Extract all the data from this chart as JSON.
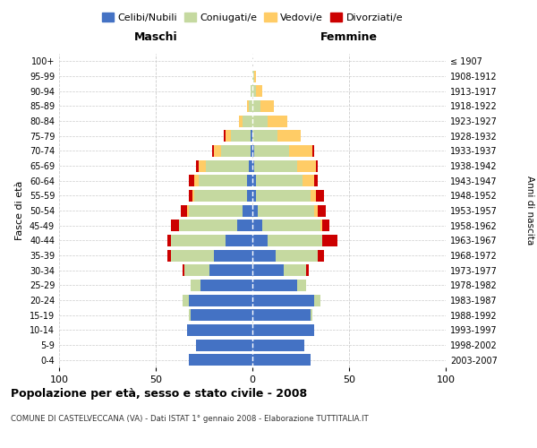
{
  "age_groups": [
    "0-4",
    "5-9",
    "10-14",
    "15-19",
    "20-24",
    "25-29",
    "30-34",
    "35-39",
    "40-44",
    "45-49",
    "50-54",
    "55-59",
    "60-64",
    "65-69",
    "70-74",
    "75-79",
    "80-84",
    "85-89",
    "90-94",
    "95-99",
    "100+"
  ],
  "birth_years": [
    "2003-2007",
    "1998-2002",
    "1993-1997",
    "1988-1992",
    "1983-1987",
    "1978-1982",
    "1973-1977",
    "1968-1972",
    "1963-1967",
    "1958-1962",
    "1953-1957",
    "1948-1952",
    "1943-1947",
    "1938-1942",
    "1933-1937",
    "1928-1932",
    "1923-1927",
    "1918-1922",
    "1913-1917",
    "1908-1912",
    "≤ 1907"
  ],
  "males": {
    "celibi": [
      33,
      29,
      34,
      32,
      33,
      27,
      22,
      20,
      14,
      8,
      5,
      3,
      3,
      2,
      1,
      1,
      0,
      0,
      0,
      0,
      0
    ],
    "coniugati": [
      0,
      0,
      0,
      1,
      3,
      5,
      13,
      22,
      28,
      30,
      28,
      27,
      25,
      22,
      15,
      10,
      5,
      2,
      1,
      0,
      0
    ],
    "vedovi": [
      0,
      0,
      0,
      0,
      0,
      0,
      0,
      0,
      0,
      0,
      1,
      1,
      2,
      4,
      4,
      3,
      2,
      1,
      0,
      0,
      0
    ],
    "divorziati": [
      0,
      0,
      0,
      0,
      0,
      0,
      1,
      2,
      2,
      4,
      3,
      2,
      3,
      1,
      1,
      1,
      0,
      0,
      0,
      0,
      0
    ]
  },
  "females": {
    "nubili": [
      30,
      27,
      32,
      30,
      32,
      23,
      16,
      12,
      8,
      5,
      3,
      2,
      2,
      1,
      1,
      0,
      0,
      0,
      0,
      0,
      0
    ],
    "coniugate": [
      0,
      0,
      0,
      1,
      3,
      5,
      12,
      22,
      28,
      30,
      29,
      28,
      24,
      22,
      18,
      13,
      8,
      4,
      2,
      1,
      0
    ],
    "vedove": [
      0,
      0,
      0,
      0,
      0,
      0,
      0,
      0,
      0,
      1,
      2,
      3,
      6,
      10,
      12,
      12,
      10,
      7,
      3,
      1,
      0
    ],
    "divorziate": [
      0,
      0,
      0,
      0,
      0,
      0,
      1,
      3,
      8,
      4,
      4,
      4,
      2,
      1,
      1,
      0,
      0,
      0,
      0,
      0,
      0
    ]
  },
  "colors": {
    "celibi_nubili": "#4472C4",
    "coniugati": "#C5D9A0",
    "vedovi": "#FFCC66",
    "divorziati": "#CC0000"
  },
  "xlim": 100,
  "title": "Popolazione per età, sesso e stato civile - 2008",
  "subtitle": "COMUNE DI CASTELVECCANA (VA) - Dati ISTAT 1° gennaio 2008 - Elaborazione TUTTITALIA.IT",
  "ylabel_left": "Fasce di età",
  "ylabel_right": "Anni di nascita",
  "xlabel_left": "Maschi",
  "xlabel_right": "Femmine",
  "bg_color": "#FFFFFF",
  "grid_color": "#CCCCCC"
}
